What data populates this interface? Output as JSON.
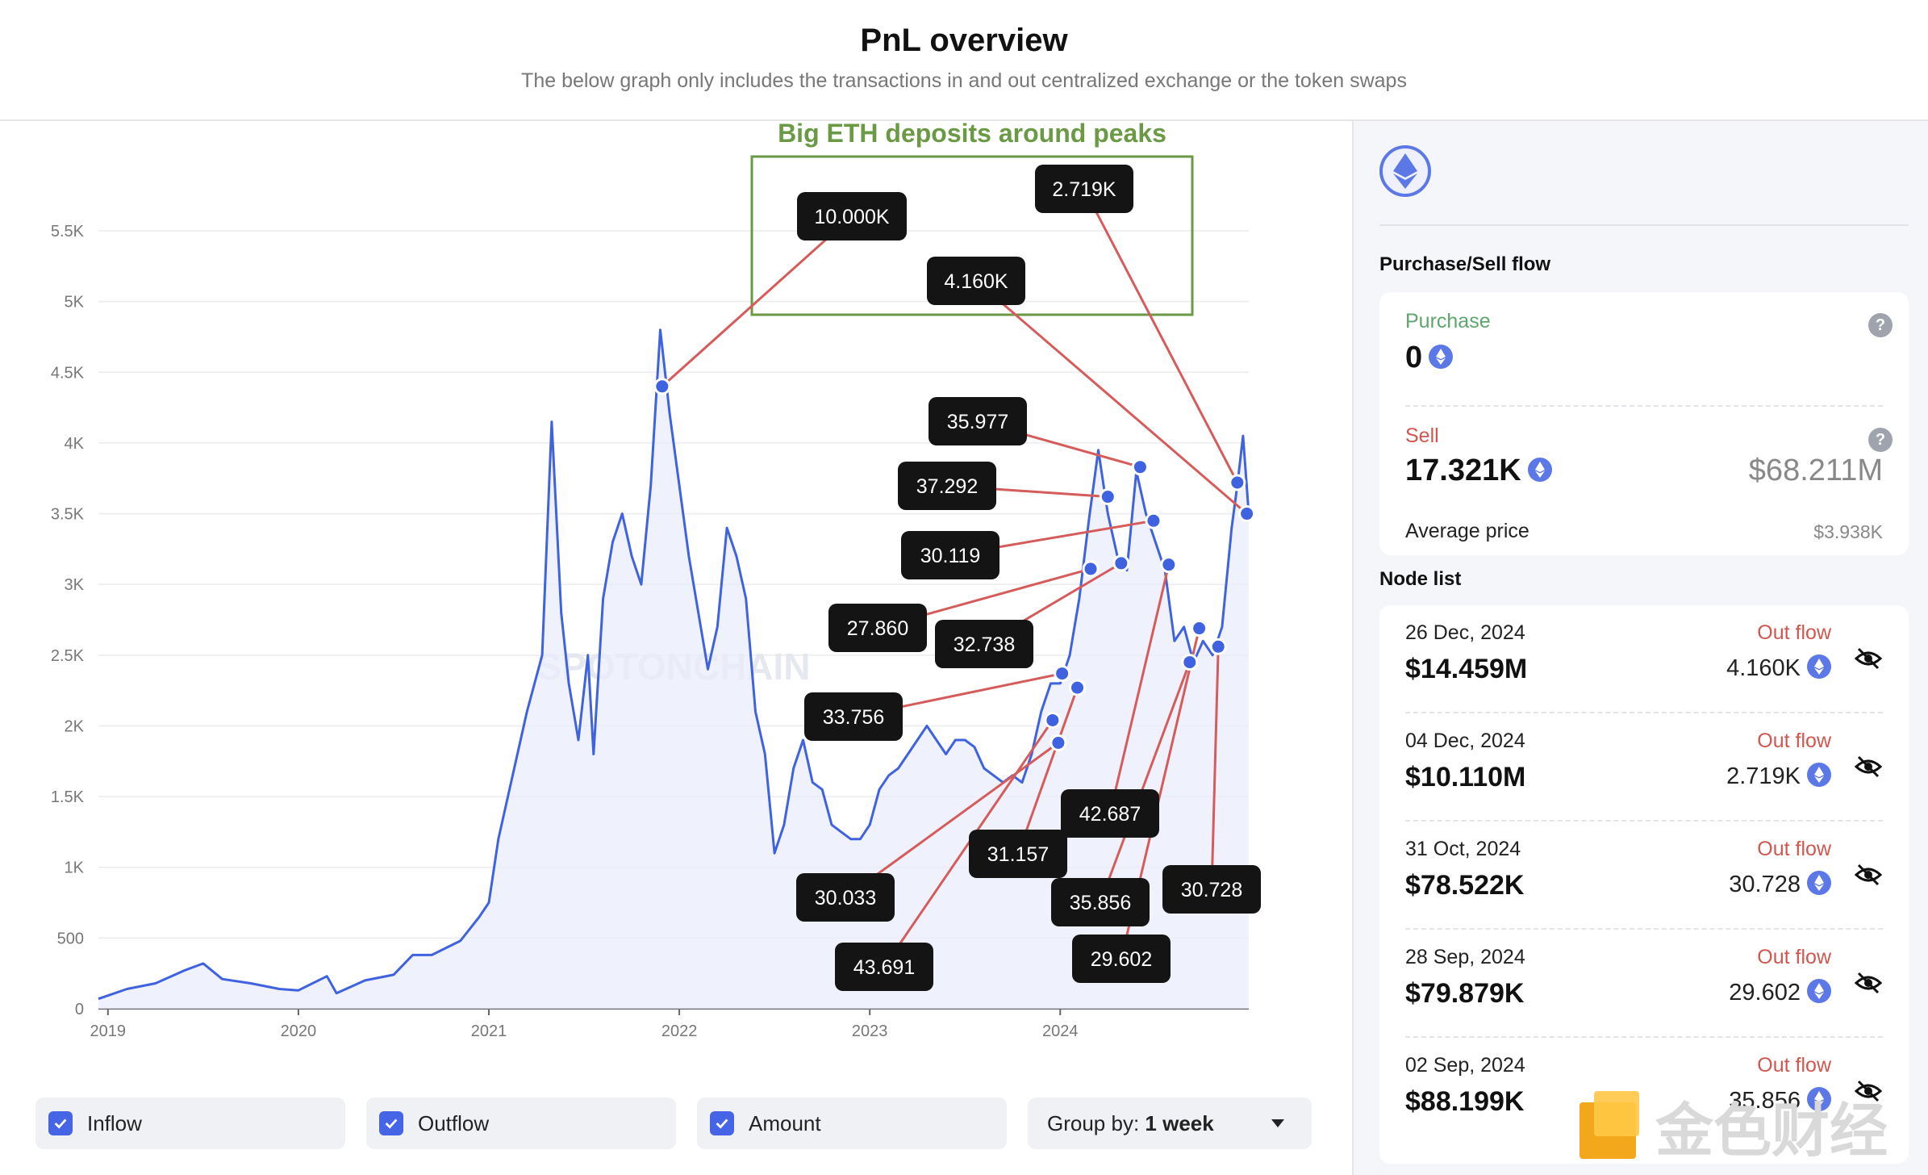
{
  "header": {
    "title": "PnL overview",
    "subtitle": "The below graph only includes the transactions in and out centralized exchange or the token swaps"
  },
  "colors": {
    "line": "#3f62e0",
    "area": "#e9edfb",
    "callout_line": "#d65b5b",
    "box": "#6b9a45",
    "label_bg": "#141414",
    "purchase": "#5ea66c",
    "sell": "#d0564f"
  },
  "annotation": {
    "text": "Big ETH deposits around peaks"
  },
  "chart_data": {
    "type": "line",
    "title": "",
    "xlabel": "",
    "ylabel": "",
    "x_ticks": [
      "2019",
      "2020",
      "2021",
      "2022",
      "2023",
      "2024"
    ],
    "y_ticks": [
      "0",
      "500",
      "1K",
      "1.5K",
      "2K",
      "2.5K",
      "3K",
      "3.5K",
      "4K",
      "4.5K",
      "5K",
      "5.5K"
    ],
    "ylim": [
      0,
      5500
    ],
    "xlim": [
      2018.95,
      2024.99
    ],
    "grid": true,
    "series": [
      {
        "points": [
          [
            2018.95,
            70
          ],
          [
            2019.1,
            140
          ],
          [
            2019.25,
            180
          ],
          [
            2019.4,
            270
          ],
          [
            2019.5,
            320
          ],
          [
            2019.6,
            210
          ],
          [
            2019.75,
            180
          ],
          [
            2019.9,
            140
          ],
          [
            2020.0,
            130
          ],
          [
            2020.15,
            230
          ],
          [
            2020.2,
            110
          ],
          [
            2020.35,
            200
          ],
          [
            2020.5,
            240
          ],
          [
            2020.6,
            380
          ],
          [
            2020.7,
            380
          ],
          [
            2020.85,
            480
          ],
          [
            2020.95,
            650
          ],
          [
            2021.0,
            750
          ],
          [
            2021.05,
            1200
          ],
          [
            2021.1,
            1500
          ],
          [
            2021.15,
            1800
          ],
          [
            2021.2,
            2100
          ],
          [
            2021.28,
            2500
          ],
          [
            2021.33,
            4150
          ],
          [
            2021.38,
            2800
          ],
          [
            2021.42,
            2300
          ],
          [
            2021.47,
            1900
          ],
          [
            2021.52,
            2500
          ],
          [
            2021.55,
            1800
          ],
          [
            2021.6,
            2900
          ],
          [
            2021.65,
            3300
          ],
          [
            2021.7,
            3500
          ],
          [
            2021.75,
            3200
          ],
          [
            2021.8,
            3000
          ],
          [
            2021.85,
            3700
          ],
          [
            2021.9,
            4800
          ],
          [
            2021.95,
            4200
          ],
          [
            2022.0,
            3700
          ],
          [
            2022.05,
            3200
          ],
          [
            2022.1,
            2800
          ],
          [
            2022.15,
            2400
          ],
          [
            2022.2,
            2700
          ],
          [
            2022.25,
            3400
          ],
          [
            2022.3,
            3200
          ],
          [
            2022.35,
            2900
          ],
          [
            2022.4,
            2100
          ],
          [
            2022.45,
            1800
          ],
          [
            2022.5,
            1100
          ],
          [
            2022.55,
            1300
          ],
          [
            2022.6,
            1700
          ],
          [
            2022.65,
            1900
          ],
          [
            2022.7,
            1600
          ],
          [
            2022.75,
            1550
          ],
          [
            2022.8,
            1300
          ],
          [
            2022.85,
            1250
          ],
          [
            2022.9,
            1200
          ],
          [
            2022.95,
            1200
          ],
          [
            2023.0,
            1300
          ],
          [
            2023.05,
            1550
          ],
          [
            2023.1,
            1650
          ],
          [
            2023.15,
            1700
          ],
          [
            2023.2,
            1800
          ],
          [
            2023.25,
            1900
          ],
          [
            2023.3,
            2000
          ],
          [
            2023.35,
            1900
          ],
          [
            2023.4,
            1800
          ],
          [
            2023.45,
            1900
          ],
          [
            2023.5,
            1900
          ],
          [
            2023.55,
            1850
          ],
          [
            2023.6,
            1700
          ],
          [
            2023.65,
            1650
          ],
          [
            2023.7,
            1600
          ],
          [
            2023.75,
            1650
          ],
          [
            2023.8,
            1600
          ],
          [
            2023.85,
            1800
          ],
          [
            2023.9,
            2100
          ],
          [
            2023.95,
            2300
          ],
          [
            2024.0,
            2300
          ],
          [
            2024.05,
            2500
          ],
          [
            2024.1,
            2900
          ],
          [
            2024.15,
            3450
          ],
          [
            2024.2,
            3950
          ],
          [
            2024.25,
            3500
          ],
          [
            2024.3,
            3200
          ],
          [
            2024.35,
            3100
          ],
          [
            2024.4,
            3800
          ],
          [
            2024.45,
            3500
          ],
          [
            2024.5,
            3300
          ],
          [
            2024.55,
            3100
          ],
          [
            2024.6,
            2600
          ],
          [
            2024.65,
            2700
          ],
          [
            2024.7,
            2450
          ],
          [
            2024.75,
            2600
          ],
          [
            2024.8,
            2500
          ],
          [
            2024.85,
            2700
          ],
          [
            2024.9,
            3400
          ],
          [
            2024.93,
            3700
          ],
          [
            2024.96,
            4050
          ],
          [
            2024.99,
            3500
          ]
        ]
      }
    ],
    "markers": [
      {
        "label": "10.000K",
        "x": 2021.91,
        "y": 4400
      },
      {
        "label": "2.719K",
        "x": 2024.93,
        "y": 3720
      },
      {
        "label": "4.160K",
        "x": 2024.98,
        "y": 3500
      },
      {
        "label": "35.977",
        "x": 2024.42,
        "y": 3830
      },
      {
        "label": "37.292",
        "x": 2024.25,
        "y": 3620
      },
      {
        "label": "30.119",
        "x": 2024.49,
        "y": 3450
      },
      {
        "label": "27.860",
        "x": 2024.16,
        "y": 3110
      },
      {
        "label": "32.738",
        "x": 2024.32,
        "y": 3150
      },
      {
        "label": "33.756",
        "x": 2024.01,
        "y": 2370
      },
      {
        "label": "30.033",
        "x": 2023.99,
        "y": 1880
      },
      {
        "label": "43.691",
        "x": 2023.96,
        "y": 2040
      },
      {
        "label": "31.157",
        "x": 2024.09,
        "y": 2270
      },
      {
        "label": "42.687",
        "x": 2024.57,
        "y": 3140
      },
      {
        "label": "35.856",
        "x": 2024.68,
        "y": 2450
      },
      {
        "label": "29.602",
        "x": 2024.73,
        "y": 2690
      },
      {
        "label": "30.728",
        "x": 2024.83,
        "y": 2560
      }
    ]
  },
  "watermark_text": "SPOTONCHAIN",
  "filters": {
    "inflow": "Inflow",
    "outflow": "Outflow",
    "amount": "Amount",
    "group_prefix": "Group by:",
    "group_value": "1 week"
  },
  "sidebar": {
    "icon": "ethereum-icon",
    "flow_title": "Purchase/Sell flow",
    "purchase_label": "Purchase",
    "purchase_value": "0",
    "sell_label": "Sell",
    "sell_value": "17.321K",
    "sell_usd": "$68.211M",
    "avg_label": "Average price",
    "avg_value": "$3.938K",
    "node_title": "Node list",
    "nodes": [
      {
        "date": "26 Dec, 2024",
        "amount": "$14.459M",
        "flow": "Out flow",
        "qty": "4.160K"
      },
      {
        "date": "04 Dec, 2024",
        "amount": "$10.110M",
        "flow": "Out flow",
        "qty": "2.719K"
      },
      {
        "date": "31 Oct, 2024",
        "amount": "$78.522K",
        "flow": "Out flow",
        "qty": "30.728"
      },
      {
        "date": "28 Sep, 2024",
        "amount": "$79.879K",
        "flow": "Out flow",
        "qty": "29.602"
      },
      {
        "date": "02 Sep, 2024",
        "amount": "$88.199K",
        "flow": "Out flow",
        "qty": "35.856"
      }
    ]
  },
  "corner_watermark": "金色财经"
}
